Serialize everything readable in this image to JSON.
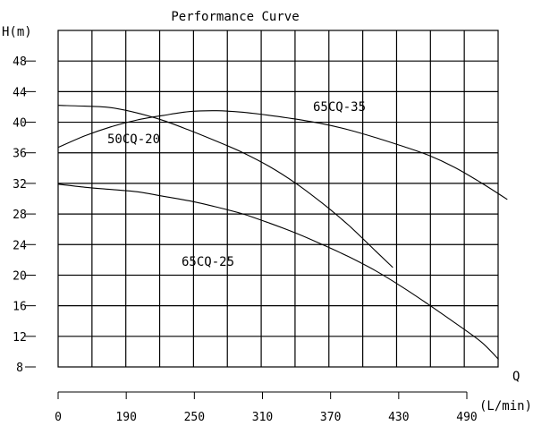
{
  "chart_data": {
    "type": "line",
    "title": "Performance Curve",
    "ylabel": "H(m)",
    "xlabel": "Q",
    "x_unit": "(L/min)",
    "yticks": [
      8,
      12,
      16,
      20,
      24,
      28,
      32,
      36,
      40,
      44,
      48
    ],
    "xticks": [
      0,
      190,
      250,
      310,
      370,
      430,
      490
    ],
    "ylim": [
      8,
      52
    ],
    "grid": true,
    "series": [
      {
        "name": "50CQ-20",
        "x": [
          0,
          30,
          60,
          90,
          120,
          150,
          180,
          210,
          240,
          270,
          300,
          330,
          360,
          380
        ],
        "y": [
          42.2,
          42.1,
          41.9,
          41.2,
          40.2,
          38.9,
          37.5,
          36.0,
          34.2,
          32.0,
          29.4,
          26.5,
          23.2,
          21.0
        ]
      },
      {
        "name": "65CQ-35",
        "x": [
          0,
          30,
          60,
          90,
          120,
          150,
          180,
          210,
          240,
          270,
          300,
          330,
          360,
          390,
          420,
          450,
          480,
          510
        ],
        "y": [
          36.7,
          38.2,
          39.4,
          40.3,
          40.9,
          41.4,
          41.5,
          41.3,
          40.9,
          40.4,
          39.8,
          39.0,
          38.0,
          36.9,
          35.7,
          34.1,
          32.1,
          29.9
        ]
      },
      {
        "name": "65CQ-25",
        "x": [
          0,
          30,
          60,
          90,
          120,
          150,
          180,
          210,
          240,
          270,
          300,
          330,
          360,
          390,
          420,
          450,
          480,
          500
        ],
        "y": [
          31.9,
          31.5,
          31.2,
          30.9,
          30.3,
          29.7,
          28.9,
          28.0,
          26.8,
          25.5,
          24.0,
          22.4,
          20.6,
          18.5,
          16.2,
          13.8,
          11.3,
          9.0
        ]
      }
    ]
  }
}
